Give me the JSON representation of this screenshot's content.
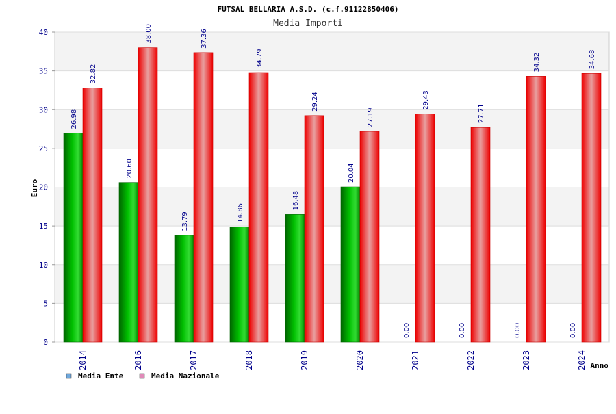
{
  "chart_data": {
    "type": "bar",
    "title": "FUTSAL BELLARIA A.S.D. (c.f.91122850406)",
    "subtitle": "Media Importi",
    "xlabel": "Anno",
    "ylabel": "Euro",
    "ylim": [
      0,
      40
    ],
    "yticks": [
      0,
      5,
      10,
      15,
      20,
      25,
      30,
      35,
      40
    ],
    "grid": true,
    "legend_position": "bottom-left",
    "categories": [
      "2014",
      "2016",
      "2017",
      "2018",
      "2019",
      "2020",
      "2021",
      "2022",
      "2023",
      "2024"
    ],
    "series": [
      {
        "name": "Media Ente",
        "color": "#00aa00",
        "legend_color": "#6fa8dc",
        "values": [
          26.98,
          20.6,
          13.79,
          14.86,
          16.48,
          20.04,
          0.0,
          0.0,
          0.0,
          0.0
        ],
        "labels": [
          "26.98",
          "20.60",
          "13.79",
          "14.86",
          "16.48",
          "20.04",
          "0.00",
          "0.00",
          "0.00",
          "0.00"
        ]
      },
      {
        "name": "Media Nazionale",
        "color": "#ee1111",
        "legend_color": "#e08ab8",
        "values": [
          32.82,
          38.0,
          37.36,
          34.79,
          29.24,
          27.19,
          29.43,
          27.71,
          34.32,
          34.68
        ],
        "labels": [
          "32.82",
          "38.00",
          "37.36",
          "34.79",
          "29.24",
          "27.19",
          "29.43",
          "27.71",
          "34.32",
          "34.68"
        ]
      }
    ]
  }
}
